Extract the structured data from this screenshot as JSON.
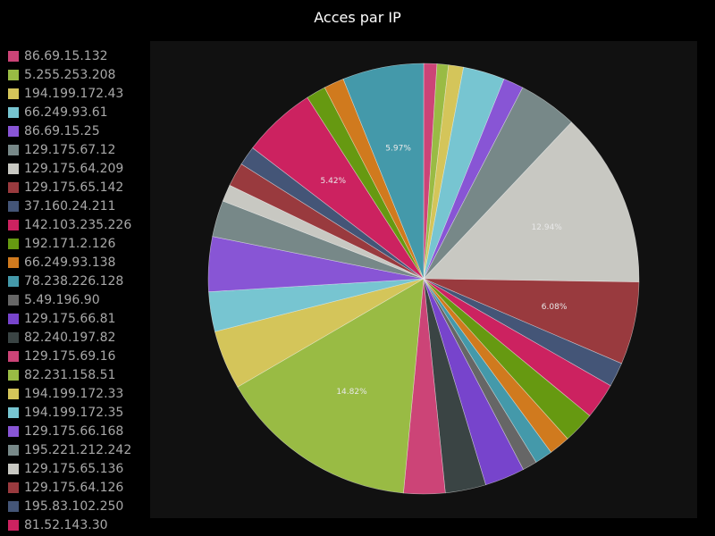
{
  "chart_data": {
    "type": "pie",
    "title": "Acces par IP",
    "series": [
      {
        "name": "86.69.15.132",
        "percent": 0.97,
        "color": "#cc4477"
      },
      {
        "name": "5.255.253.208",
        "percent": 0.84,
        "color": "#99bb44"
      },
      {
        "name": "194.199.172.43",
        "percent": 1.1,
        "color": "#d4c55a"
      },
      {
        "name": "66.249.93.61",
        "percent": 3.06,
        "color": "#77c5d1"
      },
      {
        "name": "86.69.15.25",
        "percent": 1.49,
        "color": "#8855d5"
      },
      {
        "name": "129.175.67.12",
        "percent": 4.35,
        "color": "#778888"
      },
      {
        "name": "129.175.64.209",
        "percent": 12.94,
        "color": "#c8c8c2",
        "label": "12.94%"
      },
      {
        "name": "129.175.65.142",
        "percent": 6.08,
        "color": "#993a3e",
        "label": "6.08%"
      },
      {
        "name": "37.160.24.211",
        "percent": 1.8,
        "color": "#445577"
      },
      {
        "name": "142.103.235.226",
        "percent": 2.65,
        "color": "#cc2260"
      },
      {
        "name": "192.171.2.126",
        "percent": 2.32,
        "color": "#669911"
      },
      {
        "name": "66.249.93.138",
        "percent": 1.55,
        "color": "#d07a1e"
      },
      {
        "name": "78.238.226.128",
        "percent": 1.3,
        "color": "#4499aa"
      },
      {
        "name": "5.49.196.90",
        "percent": 1.07,
        "color": "#666666"
      },
      {
        "name": "129.175.66.81",
        "percent": 2.94,
        "color": "#7744cc"
      },
      {
        "name": "82.240.197.82",
        "percent": 2.99,
        "color": "#3a4444"
      },
      {
        "name": "129.175.69.16",
        "percent": 3.04,
        "color": "#cc4477"
      },
      {
        "name": "82.231.158.51",
        "percent": 14.82,
        "color": "#99bb44",
        "label": "14.82%"
      },
      {
        "name": "194.199.172.33",
        "percent": 4.35,
        "color": "#d4c55a"
      },
      {
        "name": "194.199.172.35",
        "percent": 2.93,
        "color": "#77c5d1"
      },
      {
        "name": "129.175.66.168",
        "percent": 4.03,
        "color": "#8855d5"
      },
      {
        "name": "195.221.212.242",
        "percent": 2.68,
        "color": "#778888"
      },
      {
        "name": "129.175.65.136",
        "percent": 1.25,
        "color": "#c8c8c2"
      },
      {
        "name": "129.175.64.126",
        "percent": 1.75,
        "color": "#993a3e"
      },
      {
        "name": "195.83.102.250",
        "percent": 1.43,
        "color": "#445577"
      },
      {
        "name": "81.52.143.30",
        "percent": 5.42,
        "color": "#cc2260",
        "label": "5.42%"
      },
      {
        "name": "",
        "percent": 1.45,
        "color": "#669911"
      },
      {
        "name": "",
        "percent": 1.48,
        "color": "#d07a1e"
      },
      {
        "name": "",
        "percent": 5.97,
        "color": "#4499aa",
        "label": "5.97%"
      }
    ]
  }
}
